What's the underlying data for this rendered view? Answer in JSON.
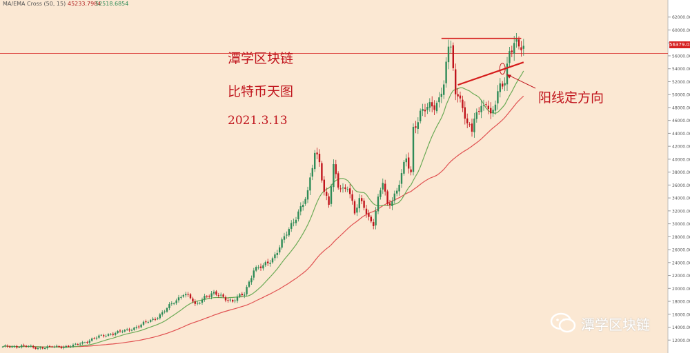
{
  "header": {
    "indicator": "MA/EMA Cross (50, 15)",
    "value_a": "45233.7984",
    "value_b": "52518.6854"
  },
  "annotations": {
    "line1": "潭学区块链",
    "line2": "比特币天图",
    "line3": "2021.3.13",
    "callout": "阳线定方向"
  },
  "watermark": "潭学区块链",
  "last_price": "56379.03",
  "colors": {
    "background": "#fbe8d3",
    "up_candle": "#2e8b57",
    "down_candle": "#c0141c",
    "ma_fast": "#6aaa55",
    "ma_slow": "#e05050",
    "annotation": "#c0141c"
  },
  "chart_data": {
    "type": "candlestick",
    "symbol": "BTC",
    "timeframe": "1D",
    "ylim": [
      10000,
      64000
    ],
    "y_ticks": [
      12000,
      14000,
      16000,
      18000,
      20000,
      22000,
      24000,
      26000,
      28000,
      30000,
      32000,
      34000,
      36000,
      38000,
      40000,
      42000,
      44000,
      46000,
      48000,
      50000,
      52000,
      54000,
      56000,
      58000,
      60000,
      62000
    ],
    "anchors": [
      [
        0,
        10900
      ],
      [
        8,
        11100
      ],
      [
        14,
        10800
      ],
      [
        20,
        10900
      ],
      [
        30,
        11100
      ],
      [
        34,
        11600
      ],
      [
        40,
        12400
      ],
      [
        46,
        13000
      ],
      [
        52,
        13400
      ],
      [
        58,
        14200
      ],
      [
        64,
        15200
      ],
      [
        68,
        16200
      ],
      [
        74,
        18200
      ],
      [
        77,
        19300
      ],
      [
        80,
        18500
      ],
      [
        82,
        17300
      ],
      [
        86,
        18800
      ],
      [
        90,
        19100
      ],
      [
        94,
        18700
      ],
      [
        98,
        18000
      ],
      [
        103,
        19200
      ],
      [
        107,
        23000
      ],
      [
        111,
        23300
      ],
      [
        115,
        24700
      ],
      [
        118,
        26500
      ],
      [
        122,
        29000
      ],
      [
        126,
        32000
      ],
      [
        130,
        34500
      ],
      [
        133,
        41000
      ],
      [
        135,
        40000
      ],
      [
        137,
        35000
      ],
      [
        139,
        33000
      ],
      [
        141,
        38500
      ],
      [
        143,
        36000
      ],
      [
        145,
        35500
      ],
      [
        147,
        36000
      ],
      [
        150,
        31500
      ],
      [
        152,
        33500
      ],
      [
        154,
        33000
      ],
      [
        156,
        31000
      ],
      [
        158,
        30000
      ],
      [
        160,
        33500
      ],
      [
        162,
        36500
      ],
      [
        164,
        33000
      ],
      [
        166,
        34000
      ],
      [
        168,
        35000
      ],
      [
        170,
        37500
      ],
      [
        172,
        40000
      ],
      [
        174,
        38000
      ],
      [
        175,
        45000
      ],
      [
        178,
        47000
      ],
      [
        180,
        47500
      ],
      [
        182,
        48000
      ],
      [
        184,
        48500
      ],
      [
        186,
        49500
      ],
      [
        188,
        52000
      ],
      [
        190,
        56500
      ],
      [
        191,
        57500
      ],
      [
        192,
        54000
      ],
      [
        193,
        49500
      ],
      [
        195,
        50500
      ],
      [
        197,
        46000
      ],
      [
        199,
        45500
      ],
      [
        200,
        43500
      ],
      [
        202,
        47500
      ],
      [
        204,
        48000
      ],
      [
        206,
        49500
      ],
      [
        208,
        46500
      ],
      [
        210,
        48500
      ],
      [
        212,
        51000
      ],
      [
        214,
        52500
      ],
      [
        216,
        57000
      ],
      [
        218,
        58000
      ],
      [
        220,
        57000
      ]
    ],
    "annotation_lines": [
      {
        "type": "resistance",
        "from": [
          187,
          58700
        ],
        "to": [
          221,
          58700
        ]
      },
      {
        "type": "trendline",
        "from": [
          194,
          51500
        ],
        "to": [
          222,
          55000
        ]
      }
    ],
    "callout": {
      "text": "阳线定方向",
      "target_index": 213,
      "target_price": 54000
    },
    "series": [
      {
        "type": "ma",
        "period": 15
      },
      {
        "type": "ma",
        "period": 50
      }
    ]
  }
}
